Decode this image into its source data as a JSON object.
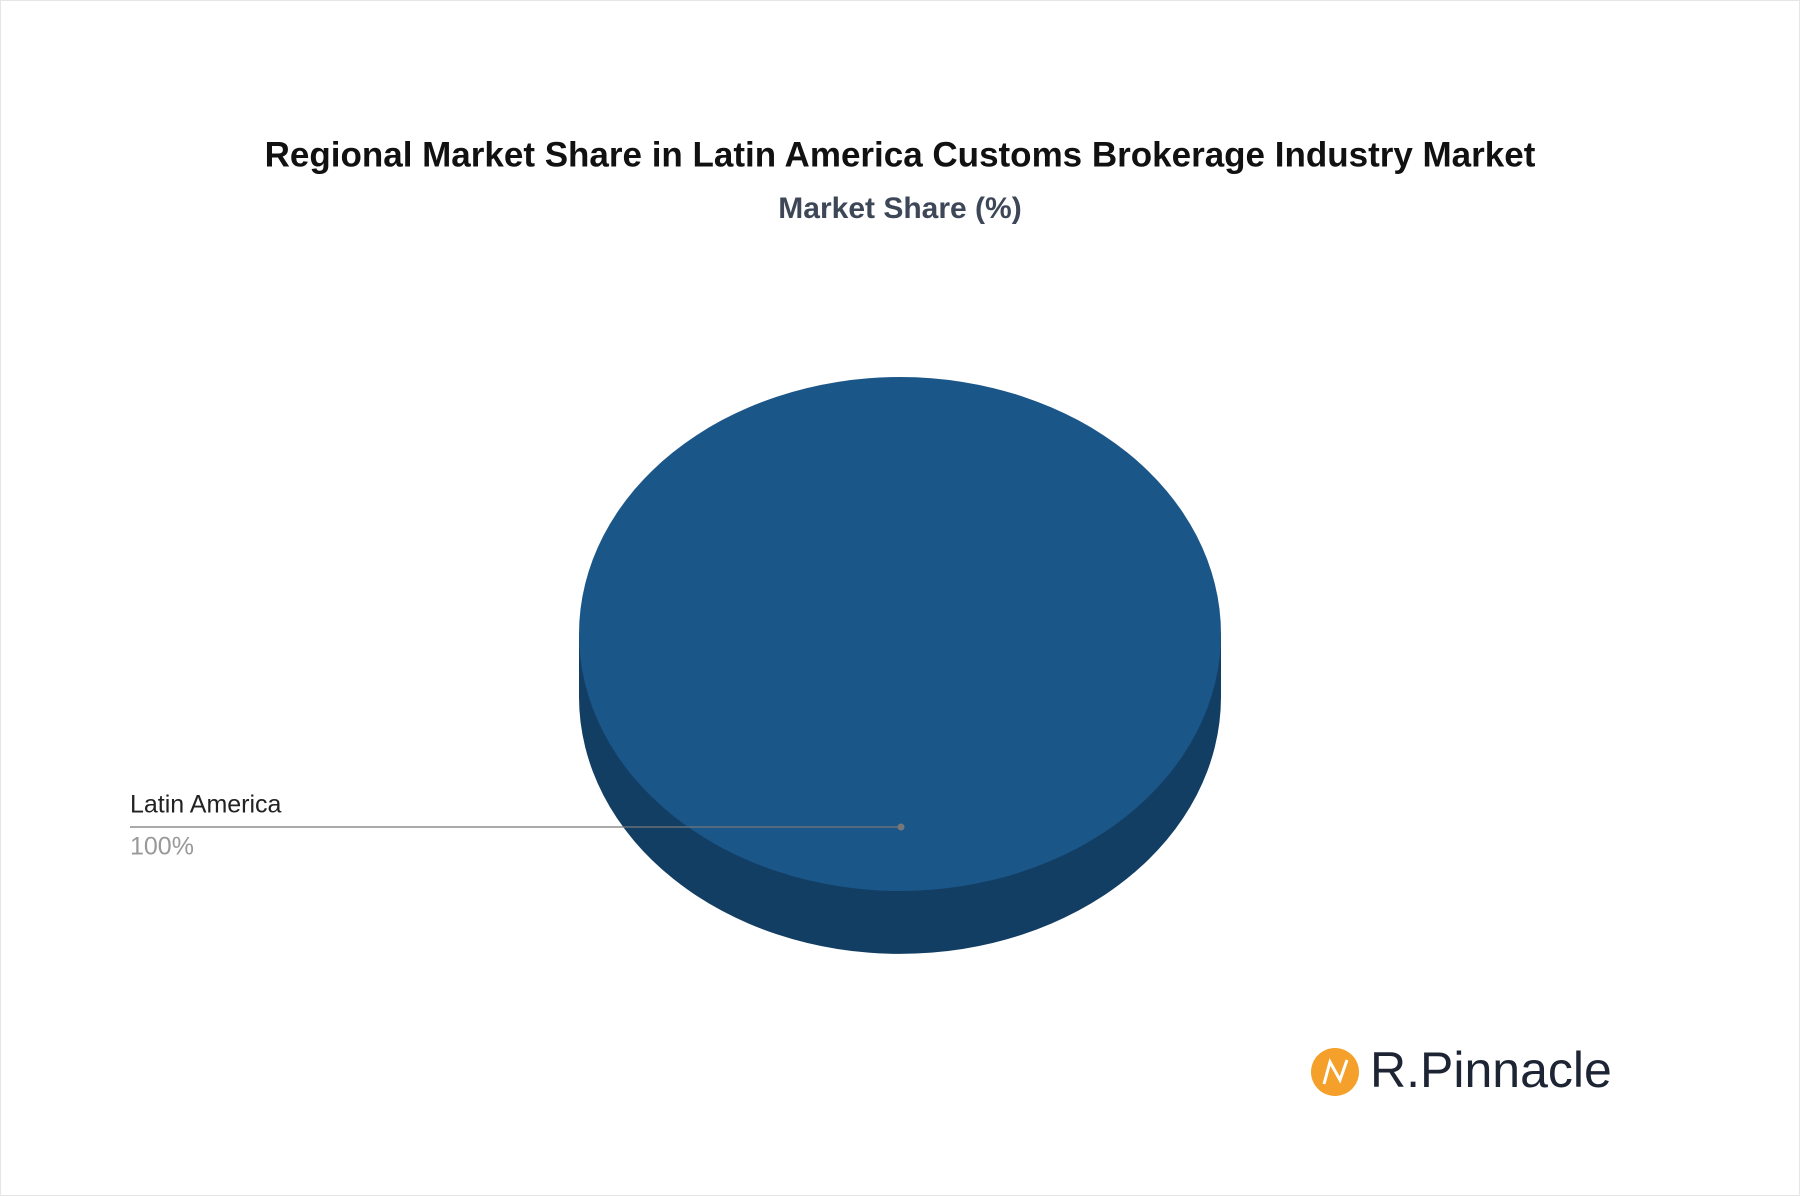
{
  "chart_data": {
    "type": "pie",
    "title": "Regional Market Share in Latin America Customs Brokerage Industry Market",
    "subtitle": "Market Share (%)",
    "categories": [
      "Latin America"
    ],
    "values": [
      100
    ],
    "value_labels": [
      "100%"
    ],
    "colors": [
      "#1b5689"
    ],
    "three_d": true
  },
  "logo": {
    "text": "R.Pinnacle"
  }
}
